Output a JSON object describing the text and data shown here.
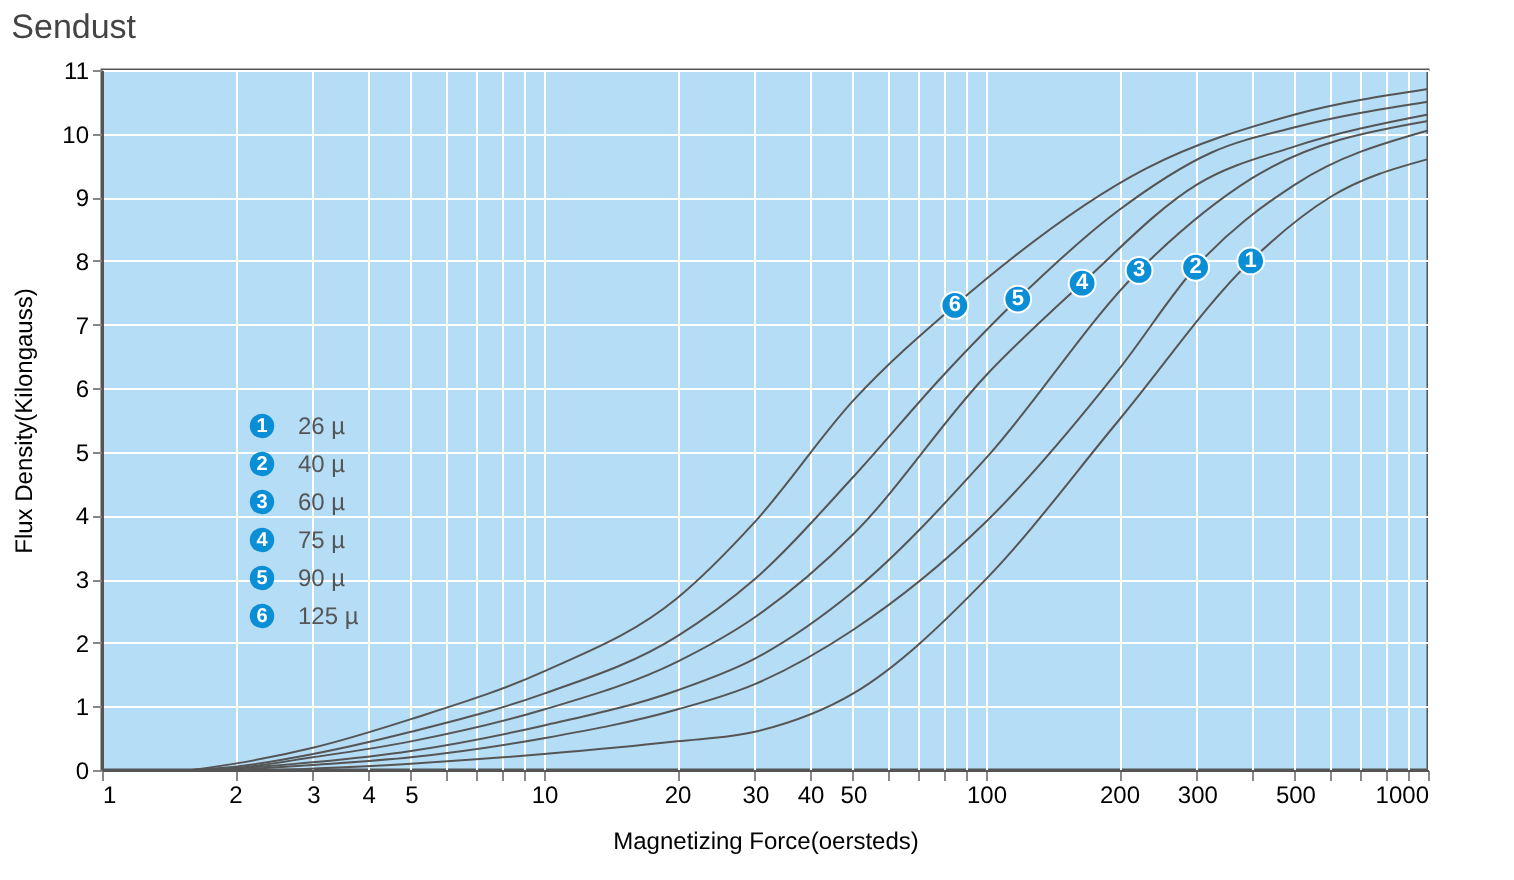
{
  "chart_data": {
    "type": "line",
    "title": "Sendust",
    "xlabel": "Magnetizing Force(oersteds)",
    "ylabel": "Flux Density(Kilongauss)",
    "log": "x",
    "grid": true,
    "legend": "left",
    "line_style": "solid",
    "marker": "none",
    "xlim": [
      1,
      1000
    ],
    "ylim": [
      0,
      11
    ],
    "xticks": [
      1,
      2,
      3,
      4,
      5,
      {
        "value": 6,
        "label": null
      },
      {
        "value": 7,
        "label": null
      },
      {
        "value": 8,
        "label": null
      },
      {
        "value": 9,
        "label": null
      },
      10,
      20,
      30,
      40,
      50,
      {
        "value": 60,
        "label": null
      },
      {
        "value": 70,
        "label": null
      },
      {
        "value": 80,
        "label": null
      },
      {
        "value": 90,
        "label": null
      },
      100,
      200,
      300,
      {
        "value": 400,
        "label": null
      },
      500,
      {
        "value": 600,
        "label": null
      },
      {
        "value": 700,
        "label": null
      },
      {
        "value": 800,
        "label": null
      },
      {
        "value": 900,
        "label": null
      },
      1000
    ],
    "yticks": [
      0,
      1,
      2,
      3,
      4,
      5,
      6,
      7,
      8,
      9,
      10,
      11
    ],
    "series": [
      {
        "name": "26 µ",
        "color": "#555555",
        "x": [
          2.5,
          5,
          10,
          20,
          30,
          50,
          100,
          200,
          397,
          600,
          1000
        ],
        "values": [
          0,
          0.1,
          0.25,
          0.45,
          0.6,
          1.2,
          3.0,
          5.5,
          8.0,
          9.0,
          9.6
        ]
      },
      {
        "name": "40 µ",
        "color": "#555555",
        "x": [
          2,
          3,
          5,
          10,
          20,
          30,
          50,
          100,
          200,
          298,
          500,
          1000
        ],
        "values": [
          0,
          0.08,
          0.2,
          0.5,
          0.95,
          1.35,
          2.2,
          3.9,
          6.3,
          7.9,
          9.2,
          10.05
        ]
      },
      {
        "name": "60 µ",
        "color": "#555555",
        "x": [
          1.8,
          3,
          5,
          10,
          20,
          30,
          50,
          100,
          222,
          400,
          1000
        ],
        "values": [
          0,
          0.12,
          0.3,
          0.7,
          1.25,
          1.75,
          2.8,
          4.9,
          7.85,
          9.3,
          10.2
        ]
      },
      {
        "name": "75 µ",
        "color": "#555555",
        "x": [
          1.7,
          2,
          3,
          5,
          10,
          20,
          30,
          50,
          100,
          165,
          300,
          500,
          1000
        ],
        "values": [
          0,
          0.03,
          0.2,
          0.45,
          0.95,
          1.7,
          2.4,
          3.7,
          6.2,
          7.65,
          9.2,
          9.8,
          10.3
        ]
      },
      {
        "name": "90 µ",
        "color": "#555555",
        "x": [
          1.6,
          2,
          3,
          5,
          10,
          20,
          30,
          50,
          80,
          118,
          200,
          323,
          500,
          1000
        ],
        "values": [
          0,
          0.05,
          0.25,
          0.6,
          1.2,
          2.1,
          3.0,
          4.6,
          6.2,
          7.4,
          8.8,
          9.7,
          10.1,
          10.5
        ]
      },
      {
        "name": "125 µ",
        "color": "#555555",
        "x": [
          1.6,
          2,
          3,
          5,
          10,
          20,
          30,
          50,
          85,
          230,
          500,
          1000
        ],
        "values": [
          0,
          0.1,
          0.35,
          0.8,
          1.55,
          2.7,
          3.9,
          5.8,
          7.3,
          9.45,
          10.3,
          10.7
        ]
      }
    ],
    "annotations": [
      {
        "text": "1",
        "x": 397,
        "y": 8.0
      },
      {
        "text": "2",
        "x": 298,
        "y": 7.9
      },
      {
        "text": "3",
        "x": 222,
        "y": 7.85
      },
      {
        "text": "4",
        "x": 165,
        "y": 7.65
      },
      {
        "text": "5",
        "x": 118,
        "y": 7.4
      },
      {
        "text": "6",
        "x": 85,
        "y": 7.3
      }
    ]
  }
}
